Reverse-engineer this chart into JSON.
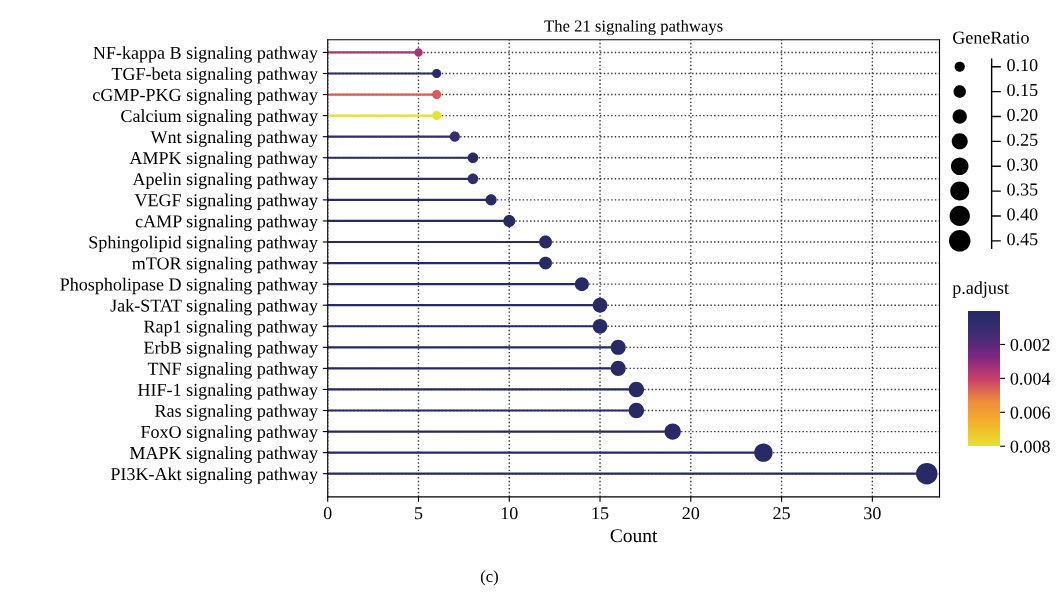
{
  "chart_data": {
    "type": "lollipop",
    "orientation": "horizontal",
    "title": "The 21 signaling pathways",
    "xlabel": "Count",
    "legend_title": "GeneRatio",
    "clabel": "p.adjust",
    "categories": [
      "NF-kappa B signaling pathway",
      "TGF-beta signaling pathway",
      "cGMP-PKG signaling pathway",
      "Calcium signaling pathway",
      "Wnt signaling pathway",
      "AMPK signaling pathway",
      "Apelin signaling pathway",
      "VEGF signaling pathway",
      "cAMP signaling pathway",
      "Sphingolipid signaling pathway",
      "mTOR signaling pathway",
      "Phospholipase D signaling pathway",
      "Jak-STAT signaling pathway",
      "Rap1 signaling pathway",
      "ErbB signaling pathway",
      "TNF signaling pathway",
      "HIF-1 signaling pathway",
      "Ras signaling pathway",
      "FoxO signaling pathway",
      "MAPK signaling pathway",
      "PI3K-Akt signaling pathway"
    ],
    "values": [
      5,
      6,
      6,
      6,
      7,
      8,
      8,
      9,
      10,
      12,
      12,
      14,
      15,
      15,
      16,
      16,
      17,
      17,
      19,
      24,
      33
    ],
    "sizes": [
      0.07,
      0.08,
      0.08,
      0.08,
      0.1,
      0.11,
      0.11,
      0.12,
      0.14,
      0.16,
      0.16,
      0.19,
      0.21,
      0.21,
      0.22,
      0.22,
      0.23,
      0.23,
      0.26,
      0.33,
      0.45
    ],
    "size_legend": [
      {
        "value": 0.1,
        "label": "0.10"
      },
      0.15,
      {
        "value": 0.2,
        "label": "0.20"
      },
      0.25,
      {
        "value": 0.3,
        "label": "0.30"
      },
      0.35,
      {
        "value": 0.4,
        "label": "0.40"
      },
      0.45
    ],
    "cvalues": [
      0.0035,
      0.0003,
      0.0045,
      0.008,
      0.001,
      0.0002,
      0.0008,
      0.0002,
      0.0001,
      0.0001,
      0.0001,
      0.0001,
      0.0001,
      0.0001,
      0.0001,
      0.0001,
      0.0001,
      0.0001,
      0.0001,
      0.0001,
      0.0001
    ],
    "clim": [
      0,
      0.008
    ],
    "cticks": [
      0.002,
      0.004,
      0.006,
      0.008
    ],
    "xlim": [
      0,
      33.7
    ],
    "xticks": [
      0,
      5,
      10,
      15,
      20,
      25,
      30
    ],
    "grid": true,
    "line_style": "dotted",
    "marker": "circle",
    "annotations": [
      "(c)"
    ]
  }
}
